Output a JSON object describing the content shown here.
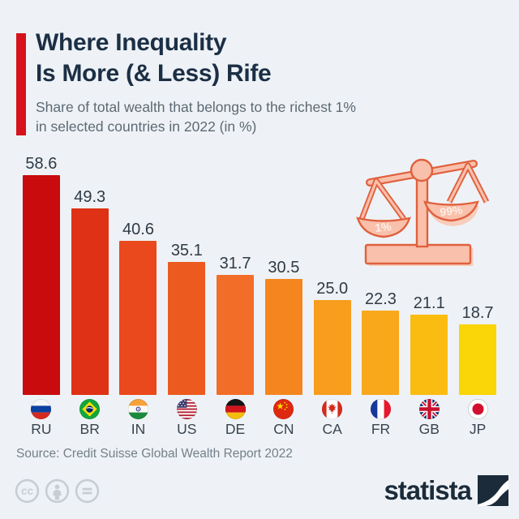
{
  "header": {
    "title_line1": "Where Inequality",
    "title_line2": "Is More (& Less) Rife",
    "subtitle_line1": "Share of total wealth that belongs to the richest 1%",
    "subtitle_line2": "in selected countries in 2022 (in %)",
    "accent_color": "#d6121b"
  },
  "chart_data": {
    "type": "bar",
    "title": "Where Inequality Is More (& Less) Rife",
    "subtitle": "Share of total wealth that belongs to the richest 1% in selected countries in 2022 (in %)",
    "categories": [
      "RU",
      "BR",
      "IN",
      "US",
      "DE",
      "CN",
      "CA",
      "FR",
      "GB",
      "JP"
    ],
    "values": [
      58.6,
      49.3,
      40.6,
      35.1,
      31.7,
      30.5,
      25.0,
      22.3,
      21.1,
      18.7
    ],
    "bar_colors": [
      "#c90b0e",
      "#de3115",
      "#e9491c",
      "#ec5a1f",
      "#f26d28",
      "#f5861f",
      "#f89d1d",
      "#f9a81b",
      "#fbbc12",
      "#fad507"
    ],
    "flag_icons": [
      "flag-russia-icon",
      "flag-brazil-icon",
      "flag-india-icon",
      "flag-usa-icon",
      "flag-germany-icon",
      "flag-china-icon",
      "flag-canada-icon",
      "flag-france-icon",
      "flag-uk-icon",
      "flag-japan-icon"
    ],
    "xlabel": "",
    "ylabel": "",
    "ylim": [
      0,
      60
    ],
    "grid": false,
    "legend": false,
    "value_labels": "shown above each bar, one decimal"
  },
  "illustration": {
    "name": "unbalanced-scale",
    "left_pan_label": "1%",
    "right_pan_label": "99%",
    "fill_color": "#f9c0ab",
    "outline_color": "#e0603e"
  },
  "footer": {
    "source": "Source: Credit Suisse Global Wealth Report 2022",
    "license_icons": [
      "cc-icon",
      "attribution-icon",
      "equal-icon"
    ],
    "brand": "statista"
  },
  "colors": {
    "background": "#eef2f6",
    "title_text": "#1b2f45",
    "subtitle_text": "#5d6973",
    "value_label_text": "#2f3a45",
    "source_text": "#73808a",
    "license_icon": "#c6cdd4",
    "brand_navy": "#1b2b3a"
  }
}
